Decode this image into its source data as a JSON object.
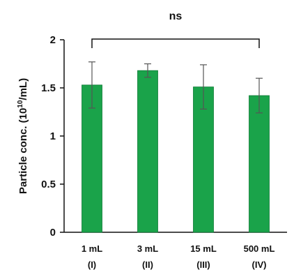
{
  "chart_data": {
    "type": "bar",
    "categories": [
      "1 mL",
      "3 mL",
      "15 mL",
      "500 mL"
    ],
    "sublabels": [
      "(I)",
      "(II)",
      "(III)",
      "(IV)"
    ],
    "values": [
      1.53,
      1.68,
      1.51,
      1.42
    ],
    "errors": [
      0.24,
      0.07,
      0.23,
      0.18
    ],
    "ylabel_prefix": "Particle conc. (10",
    "ylabel_sup": "10",
    "ylabel_suffix": "/mL)",
    "ylim": [
      0,
      2
    ],
    "yticks": [
      "0",
      "0.5",
      "1",
      "1.5",
      "2"
    ],
    "significance": {
      "label": "ns",
      "from": 0,
      "to": 3
    },
    "bar_color": "#1aa34a",
    "grid": false
  }
}
